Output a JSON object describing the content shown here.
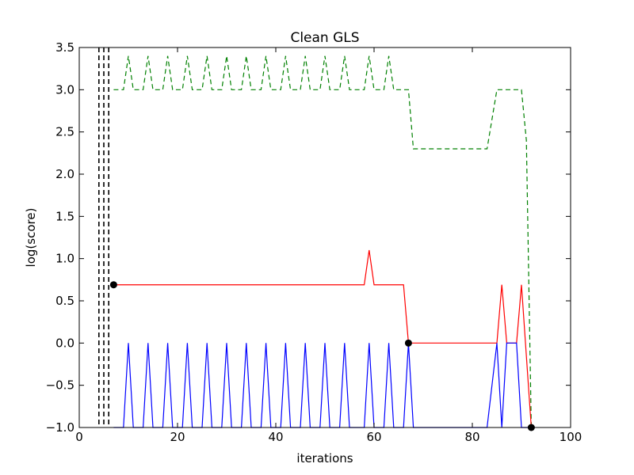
{
  "chart_data": {
    "type": "line",
    "title": "Clean GLS",
    "xlabel": "iterations",
    "ylabel": "log(score)",
    "xlim": [
      0,
      100
    ],
    "ylim": [
      -1.0,
      3.5
    ],
    "grid": false,
    "xticks": [
      0,
      20,
      40,
      60,
      80,
      100
    ],
    "xtick_labels": [
      "0",
      "20",
      "40",
      "60",
      "80",
      "100"
    ],
    "yticks": [
      -1.0,
      -0.5,
      0.0,
      0.5,
      1.0,
      1.5,
      2.0,
      2.5,
      3.0,
      3.5
    ],
    "ytick_labels": [
      "−1.0",
      "−0.5",
      "0.0",
      "0.5",
      "1.0",
      "1.5",
      "2.0",
      "2.5",
      "3.0",
      "3.5"
    ],
    "vlines": [
      {
        "x": 4,
        "color": "#000000",
        "style": "dashed"
      },
      {
        "x": 5,
        "color": "#000000",
        "style": "dashed"
      },
      {
        "x": 6,
        "color": "#000000",
        "style": "dashed"
      }
    ],
    "series": [
      {
        "color": "#008000",
        "style": "dashed",
        "x": [
          7,
          9,
          10,
          11,
          13,
          14,
          15,
          17,
          18,
          19,
          21,
          22,
          23,
          25,
          26,
          27,
          29,
          30,
          31,
          33,
          34,
          35,
          37,
          38,
          39,
          41,
          42,
          43,
          45,
          46,
          47,
          49,
          50,
          51,
          53,
          54,
          55,
          58,
          59,
          60,
          62,
          63,
          64,
          67,
          68,
          83,
          85,
          86,
          90,
          91,
          92
        ],
        "y": [
          3.0,
          3.0,
          3.4,
          3.0,
          3.0,
          3.4,
          3.0,
          3.0,
          3.4,
          3.0,
          3.0,
          3.4,
          3.0,
          3.0,
          3.4,
          3.0,
          3.0,
          3.4,
          3.0,
          3.0,
          3.4,
          3.0,
          3.0,
          3.4,
          3.0,
          3.0,
          3.4,
          3.0,
          3.0,
          3.4,
          3.0,
          3.0,
          3.4,
          3.0,
          3.0,
          3.4,
          3.0,
          3.0,
          3.4,
          3.0,
          3.0,
          3.4,
          3.0,
          3.0,
          2.3,
          2.3,
          3.0,
          3.0,
          3.0,
          2.4,
          -1.0
        ]
      },
      {
        "color": "#ff0000",
        "style": "solid",
        "x": [
          7,
          58,
          59,
          60,
          66,
          67,
          85,
          86,
          87,
          89,
          90,
          92
        ],
        "y": [
          0.69,
          0.69,
          1.1,
          0.69,
          0.69,
          0.0,
          0.0,
          0.69,
          0.0,
          0.0,
          0.69,
          -1.0
        ]
      },
      {
        "color": "#0000ff",
        "style": "solid",
        "x": [
          7,
          9,
          10,
          11,
          13,
          14,
          15,
          17,
          18,
          19,
          21,
          22,
          23,
          25,
          26,
          27,
          29,
          30,
          31,
          33,
          34,
          35,
          37,
          38,
          39,
          41,
          42,
          43,
          45,
          46,
          47,
          49,
          50,
          51,
          53,
          54,
          55,
          58,
          59,
          60,
          62,
          63,
          64,
          66,
          67,
          68,
          83,
          85,
          86,
          87,
          89,
          90,
          92
        ],
        "y": [
          -1.0,
          -1.0,
          0.0,
          -1.0,
          -1.0,
          0.0,
          -1.0,
          -1.0,
          0.0,
          -1.0,
          -1.0,
          0.0,
          -1.0,
          -1.0,
          0.0,
          -1.0,
          -1.0,
          0.0,
          -1.0,
          -1.0,
          0.0,
          -1.0,
          -1.0,
          0.0,
          -1.0,
          -1.0,
          0.0,
          -1.0,
          -1.0,
          0.0,
          -1.0,
          -1.0,
          0.0,
          -1.0,
          -1.0,
          0.0,
          -1.0,
          -1.0,
          0.0,
          -1.0,
          -1.0,
          0.0,
          -1.0,
          -1.0,
          0.0,
          -1.0,
          -1.0,
          0.0,
          -1.0,
          0.0,
          0.0,
          -1.0,
          -1.0
        ]
      }
    ],
    "markers": [
      {
        "x": 7,
        "y": 0.69,
        "color": "#000000"
      },
      {
        "x": 67,
        "y": 0.0,
        "color": "#000000"
      },
      {
        "x": 92,
        "y": -1.0,
        "color": "#000000"
      }
    ]
  }
}
